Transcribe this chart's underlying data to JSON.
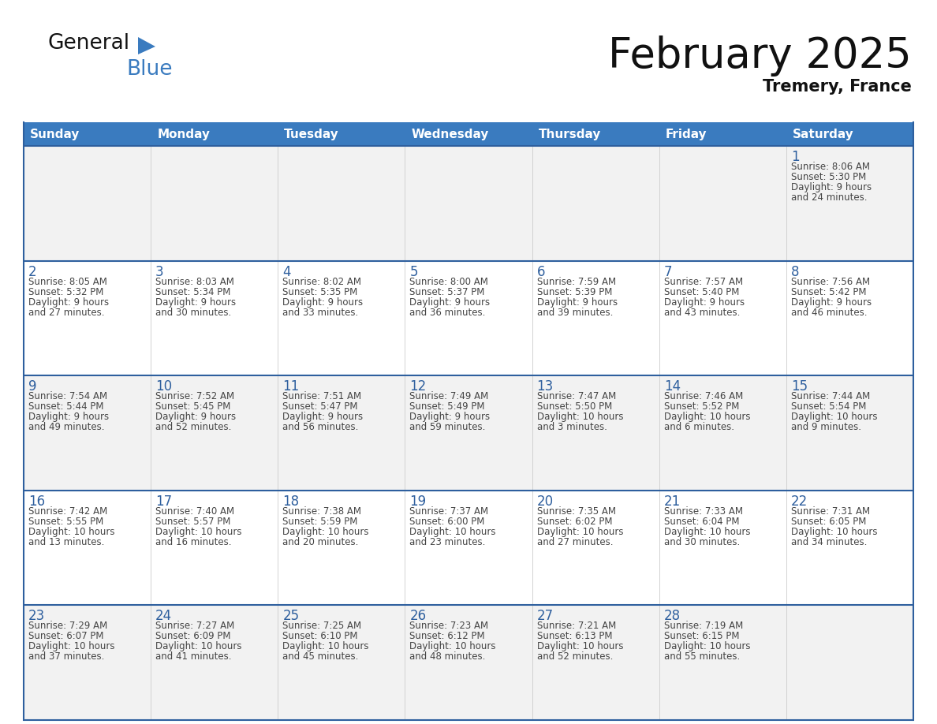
{
  "title": "February 2025",
  "subtitle": "Tremery, France",
  "header_bg_color": "#3A7BBF",
  "header_text_color": "#FFFFFF",
  "day_names": [
    "Sunday",
    "Monday",
    "Tuesday",
    "Wednesday",
    "Thursday",
    "Friday",
    "Saturday"
  ],
  "cell_bg_odd": "#F2F2F2",
  "cell_bg_even": "#FFFFFF",
  "border_color": "#2E5F9E",
  "date_color": "#2E5F9E",
  "info_color": "#444444",
  "logo_general_color": "#111111",
  "logo_blue_color": "#3A7BBF",
  "calendar": [
    [
      {
        "day": null,
        "info": ""
      },
      {
        "day": null,
        "info": ""
      },
      {
        "day": null,
        "info": ""
      },
      {
        "day": null,
        "info": ""
      },
      {
        "day": null,
        "info": ""
      },
      {
        "day": null,
        "info": ""
      },
      {
        "day": 1,
        "info": "Sunrise: 8:06 AM\nSunset: 5:30 PM\nDaylight: 9 hours\nand 24 minutes."
      }
    ],
    [
      {
        "day": 2,
        "info": "Sunrise: 8:05 AM\nSunset: 5:32 PM\nDaylight: 9 hours\nand 27 minutes."
      },
      {
        "day": 3,
        "info": "Sunrise: 8:03 AM\nSunset: 5:34 PM\nDaylight: 9 hours\nand 30 minutes."
      },
      {
        "day": 4,
        "info": "Sunrise: 8:02 AM\nSunset: 5:35 PM\nDaylight: 9 hours\nand 33 minutes."
      },
      {
        "day": 5,
        "info": "Sunrise: 8:00 AM\nSunset: 5:37 PM\nDaylight: 9 hours\nand 36 minutes."
      },
      {
        "day": 6,
        "info": "Sunrise: 7:59 AM\nSunset: 5:39 PM\nDaylight: 9 hours\nand 39 minutes."
      },
      {
        "day": 7,
        "info": "Sunrise: 7:57 AM\nSunset: 5:40 PM\nDaylight: 9 hours\nand 43 minutes."
      },
      {
        "day": 8,
        "info": "Sunrise: 7:56 AM\nSunset: 5:42 PM\nDaylight: 9 hours\nand 46 minutes."
      }
    ],
    [
      {
        "day": 9,
        "info": "Sunrise: 7:54 AM\nSunset: 5:44 PM\nDaylight: 9 hours\nand 49 minutes."
      },
      {
        "day": 10,
        "info": "Sunrise: 7:52 AM\nSunset: 5:45 PM\nDaylight: 9 hours\nand 52 minutes."
      },
      {
        "day": 11,
        "info": "Sunrise: 7:51 AM\nSunset: 5:47 PM\nDaylight: 9 hours\nand 56 minutes."
      },
      {
        "day": 12,
        "info": "Sunrise: 7:49 AM\nSunset: 5:49 PM\nDaylight: 9 hours\nand 59 minutes."
      },
      {
        "day": 13,
        "info": "Sunrise: 7:47 AM\nSunset: 5:50 PM\nDaylight: 10 hours\nand 3 minutes."
      },
      {
        "day": 14,
        "info": "Sunrise: 7:46 AM\nSunset: 5:52 PM\nDaylight: 10 hours\nand 6 minutes."
      },
      {
        "day": 15,
        "info": "Sunrise: 7:44 AM\nSunset: 5:54 PM\nDaylight: 10 hours\nand 9 minutes."
      }
    ],
    [
      {
        "day": 16,
        "info": "Sunrise: 7:42 AM\nSunset: 5:55 PM\nDaylight: 10 hours\nand 13 minutes."
      },
      {
        "day": 17,
        "info": "Sunrise: 7:40 AM\nSunset: 5:57 PM\nDaylight: 10 hours\nand 16 minutes."
      },
      {
        "day": 18,
        "info": "Sunrise: 7:38 AM\nSunset: 5:59 PM\nDaylight: 10 hours\nand 20 minutes."
      },
      {
        "day": 19,
        "info": "Sunrise: 7:37 AM\nSunset: 6:00 PM\nDaylight: 10 hours\nand 23 minutes."
      },
      {
        "day": 20,
        "info": "Sunrise: 7:35 AM\nSunset: 6:02 PM\nDaylight: 10 hours\nand 27 minutes."
      },
      {
        "day": 21,
        "info": "Sunrise: 7:33 AM\nSunset: 6:04 PM\nDaylight: 10 hours\nand 30 minutes."
      },
      {
        "day": 22,
        "info": "Sunrise: 7:31 AM\nSunset: 6:05 PM\nDaylight: 10 hours\nand 34 minutes."
      }
    ],
    [
      {
        "day": 23,
        "info": "Sunrise: 7:29 AM\nSunset: 6:07 PM\nDaylight: 10 hours\nand 37 minutes."
      },
      {
        "day": 24,
        "info": "Sunrise: 7:27 AM\nSunset: 6:09 PM\nDaylight: 10 hours\nand 41 minutes."
      },
      {
        "day": 25,
        "info": "Sunrise: 7:25 AM\nSunset: 6:10 PM\nDaylight: 10 hours\nand 45 minutes."
      },
      {
        "day": 26,
        "info": "Sunrise: 7:23 AM\nSunset: 6:12 PM\nDaylight: 10 hours\nand 48 minutes."
      },
      {
        "day": 27,
        "info": "Sunrise: 7:21 AM\nSunset: 6:13 PM\nDaylight: 10 hours\nand 52 minutes."
      },
      {
        "day": 28,
        "info": "Sunrise: 7:19 AM\nSunset: 6:15 PM\nDaylight: 10 hours\nand 55 minutes."
      },
      {
        "day": null,
        "info": ""
      }
    ]
  ]
}
